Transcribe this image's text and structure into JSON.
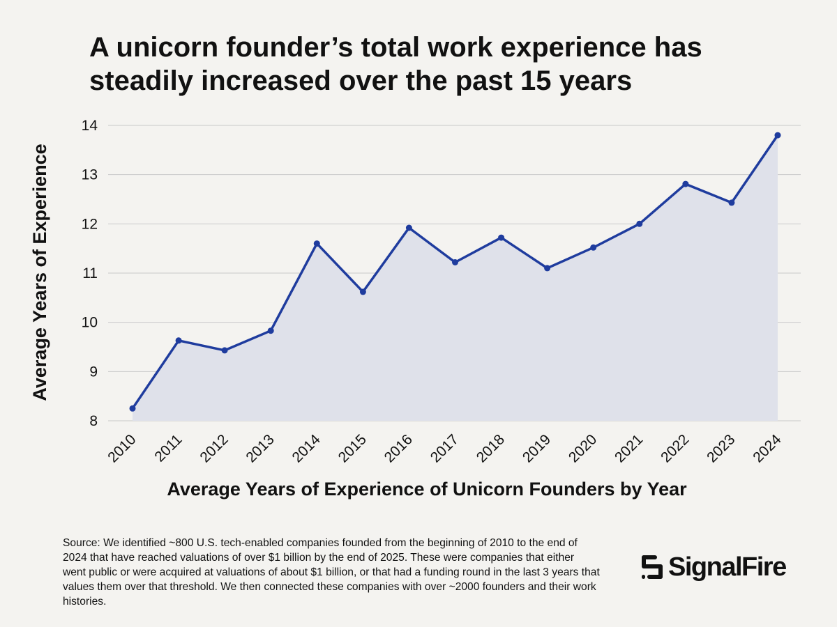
{
  "chart_data": {
    "type": "area",
    "title": "A unicorn founder’s total work experience has steadily increased over the past 15 years",
    "xlabel": "Average Years of Experience of Unicorn Founders by Year",
    "ylabel": "Average Years of Experience",
    "x": [
      "2010",
      "2011",
      "2012",
      "2013",
      "2014",
      "2015",
      "2016",
      "2017",
      "2018",
      "2019",
      "2020",
      "2021",
      "2022",
      "2023",
      "2024"
    ],
    "values": [
      8.25,
      9.63,
      9.43,
      9.83,
      11.6,
      10.62,
      11.92,
      11.22,
      11.72,
      11.1,
      11.52,
      12.0,
      12.81,
      12.43,
      13.8
    ],
    "ylim": [
      8,
      14
    ],
    "yticks": [
      "8",
      "9",
      "10",
      "11",
      "12",
      "13",
      "14"
    ],
    "grid": "horizontal",
    "legend": "none",
    "colors": {
      "line": "#1f3c9e",
      "fill": "#dfe1ea",
      "grid": "#c9c9c9",
      "background": "#f4f3f0"
    }
  },
  "source_note": "Source: We identified ~800 U.S. tech-enabled companies founded from the beginning of 2010 to the end of 2024 that have reached valuations of over $1 billion by the end of 2025. These were companies that either went public or were acquired at valuations of about $1 billion, or that had a funding round in the last 3 years that values them over that threshold. We then connected these companies with over ~2000 founders and their work histories.",
  "logo": {
    "text": "SignalFire",
    "icon": "signalfire-logo-icon"
  }
}
